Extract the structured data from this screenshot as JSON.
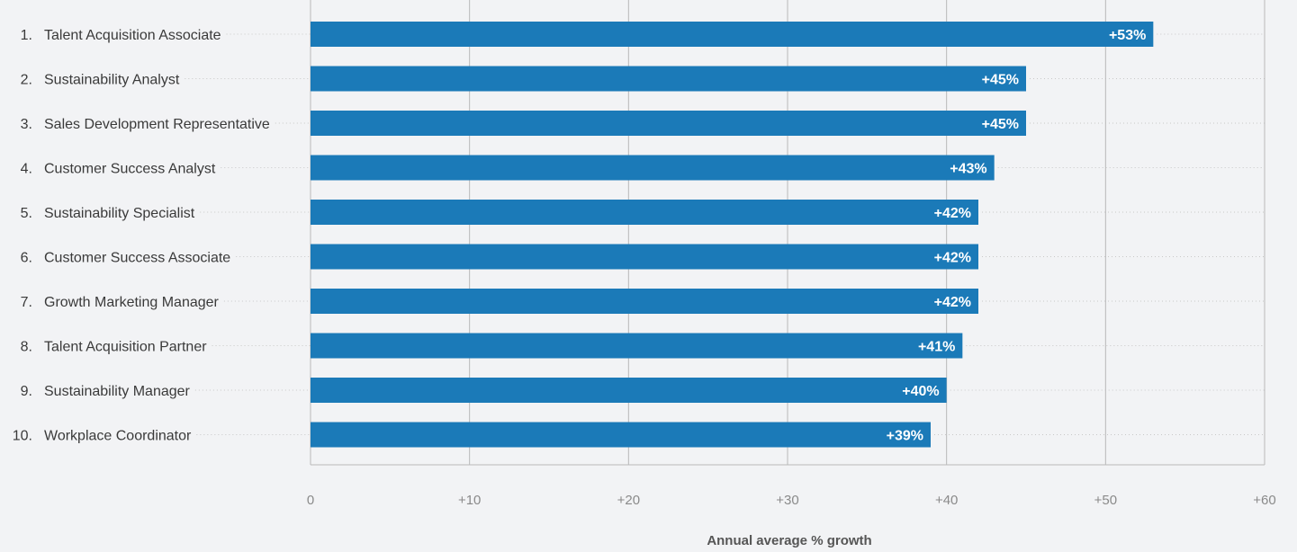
{
  "colors": {
    "bar": "#1b7ab8",
    "grid": "#b9b9b9",
    "border": "#b9b9b9",
    "leader": "#c8c8c8",
    "background": "#f2f3f5"
  },
  "chart_data": {
    "type": "bar",
    "orientation": "horizontal",
    "ranks": [
      "1.",
      "2.",
      "3.",
      "4.",
      "5.",
      "6.",
      "7.",
      "8.",
      "9.",
      "10."
    ],
    "categories": [
      "Talent Acquisition Associate",
      "Sustainability Analyst",
      "Sales Development Representative",
      "Customer Success Analyst",
      "Sustainability Specialist",
      "Customer Success Associate",
      "Growth Marketing Manager",
      "Talent Acquisition Partner",
      "Sustainability Manager",
      "Workplace Coordinator"
    ],
    "values": [
      53,
      45,
      45,
      43,
      42,
      42,
      42,
      41,
      40,
      39
    ],
    "data_labels": [
      "+53%",
      "+45%",
      "+45%",
      "+43%",
      "+42%",
      "+42%",
      "+42%",
      "+41%",
      "+40%",
      "+39%"
    ],
    "xlabel": "Annual average % growth",
    "xlim": [
      0,
      60
    ],
    "xticks": [
      0,
      10,
      20,
      30,
      40,
      50,
      60
    ],
    "xtick_labels": [
      "0",
      "+10",
      "+20",
      "+30",
      "+40",
      "+50",
      "+60"
    ],
    "grid": true,
    "legend": "none"
  }
}
